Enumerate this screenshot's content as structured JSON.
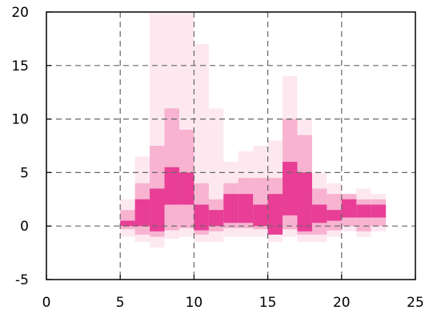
{
  "chart_data": {
    "type": "area",
    "title": "",
    "xlabel": "",
    "ylabel": "",
    "xlim": [
      0,
      25
    ],
    "ylim": [
      -5,
      20
    ],
    "x_ticks": [
      0,
      5,
      10,
      15,
      20,
      25
    ],
    "y_ticks": [
      -5,
      0,
      5,
      10,
      15,
      20
    ],
    "x_tick_labels": [
      "0",
      "5",
      "10",
      "15",
      "20",
      "25"
    ],
    "y_tick_labels": [
      "-5",
      "0",
      "5",
      "10",
      "15",
      "20"
    ],
    "grid": true,
    "legend": "none",
    "x": [
      5,
      6,
      7,
      8,
      9,
      10,
      11,
      12,
      13,
      14,
      15,
      16,
      17,
      18,
      19,
      20,
      21,
      22
    ],
    "bands": [
      {
        "level": "outer",
        "color": "#fde8f0",
        "lower": [
          -1.0,
          -1.5,
          -2.0,
          -1.2,
          -1.0,
          -1.5,
          -1.5,
          -1.0,
          -1.0,
          -1.0,
          -1.5,
          -1.0,
          -1.5,
          -1.5,
          -1.0,
          -0.5,
          -1.0,
          -0.5
        ],
        "upper": [
          2.5,
          6.5,
          20.0,
          20.0,
          20.0,
          17.0,
          11.0,
          6.0,
          7.0,
          7.5,
          8.0,
          14.0,
          10.0,
          5.0,
          4.0,
          3.0,
          3.5,
          3.0
        ]
      },
      {
        "level": "middle",
        "color": "#f7b3d0",
        "lower": [
          -0.3,
          -0.8,
          -1.0,
          -0.4,
          -0.2,
          -0.8,
          -0.5,
          -0.2,
          -0.2,
          -0.3,
          -0.5,
          -0.3,
          -0.8,
          -0.8,
          -0.4,
          0.0,
          -0.5,
          0.0
        ],
        "upper": [
          1.5,
          4.0,
          7.5,
          11.0,
          9.0,
          4.0,
          2.5,
          4.0,
          4.5,
          4.5,
          4.5,
          10.0,
          8.5,
          3.5,
          3.0,
          3.0,
          2.5,
          2.5
        ]
      },
      {
        "level": "inner",
        "color": "#e83e96",
        "lower": [
          0.0,
          0.0,
          -0.5,
          2.0,
          2.0,
          -0.4,
          0.0,
          0.3,
          0.3,
          0.0,
          -0.8,
          1.0,
          -0.5,
          0.3,
          0.5,
          0.8,
          0.8,
          0.8
        ],
        "upper": [
          0.5,
          2.5,
          3.5,
          5.5,
          5.0,
          2.0,
          1.5,
          3.0,
          3.0,
          2.0,
          3.0,
          6.0,
          5.0,
          2.0,
          1.5,
          2.5,
          2.0,
          2.0
        ]
      }
    ]
  }
}
